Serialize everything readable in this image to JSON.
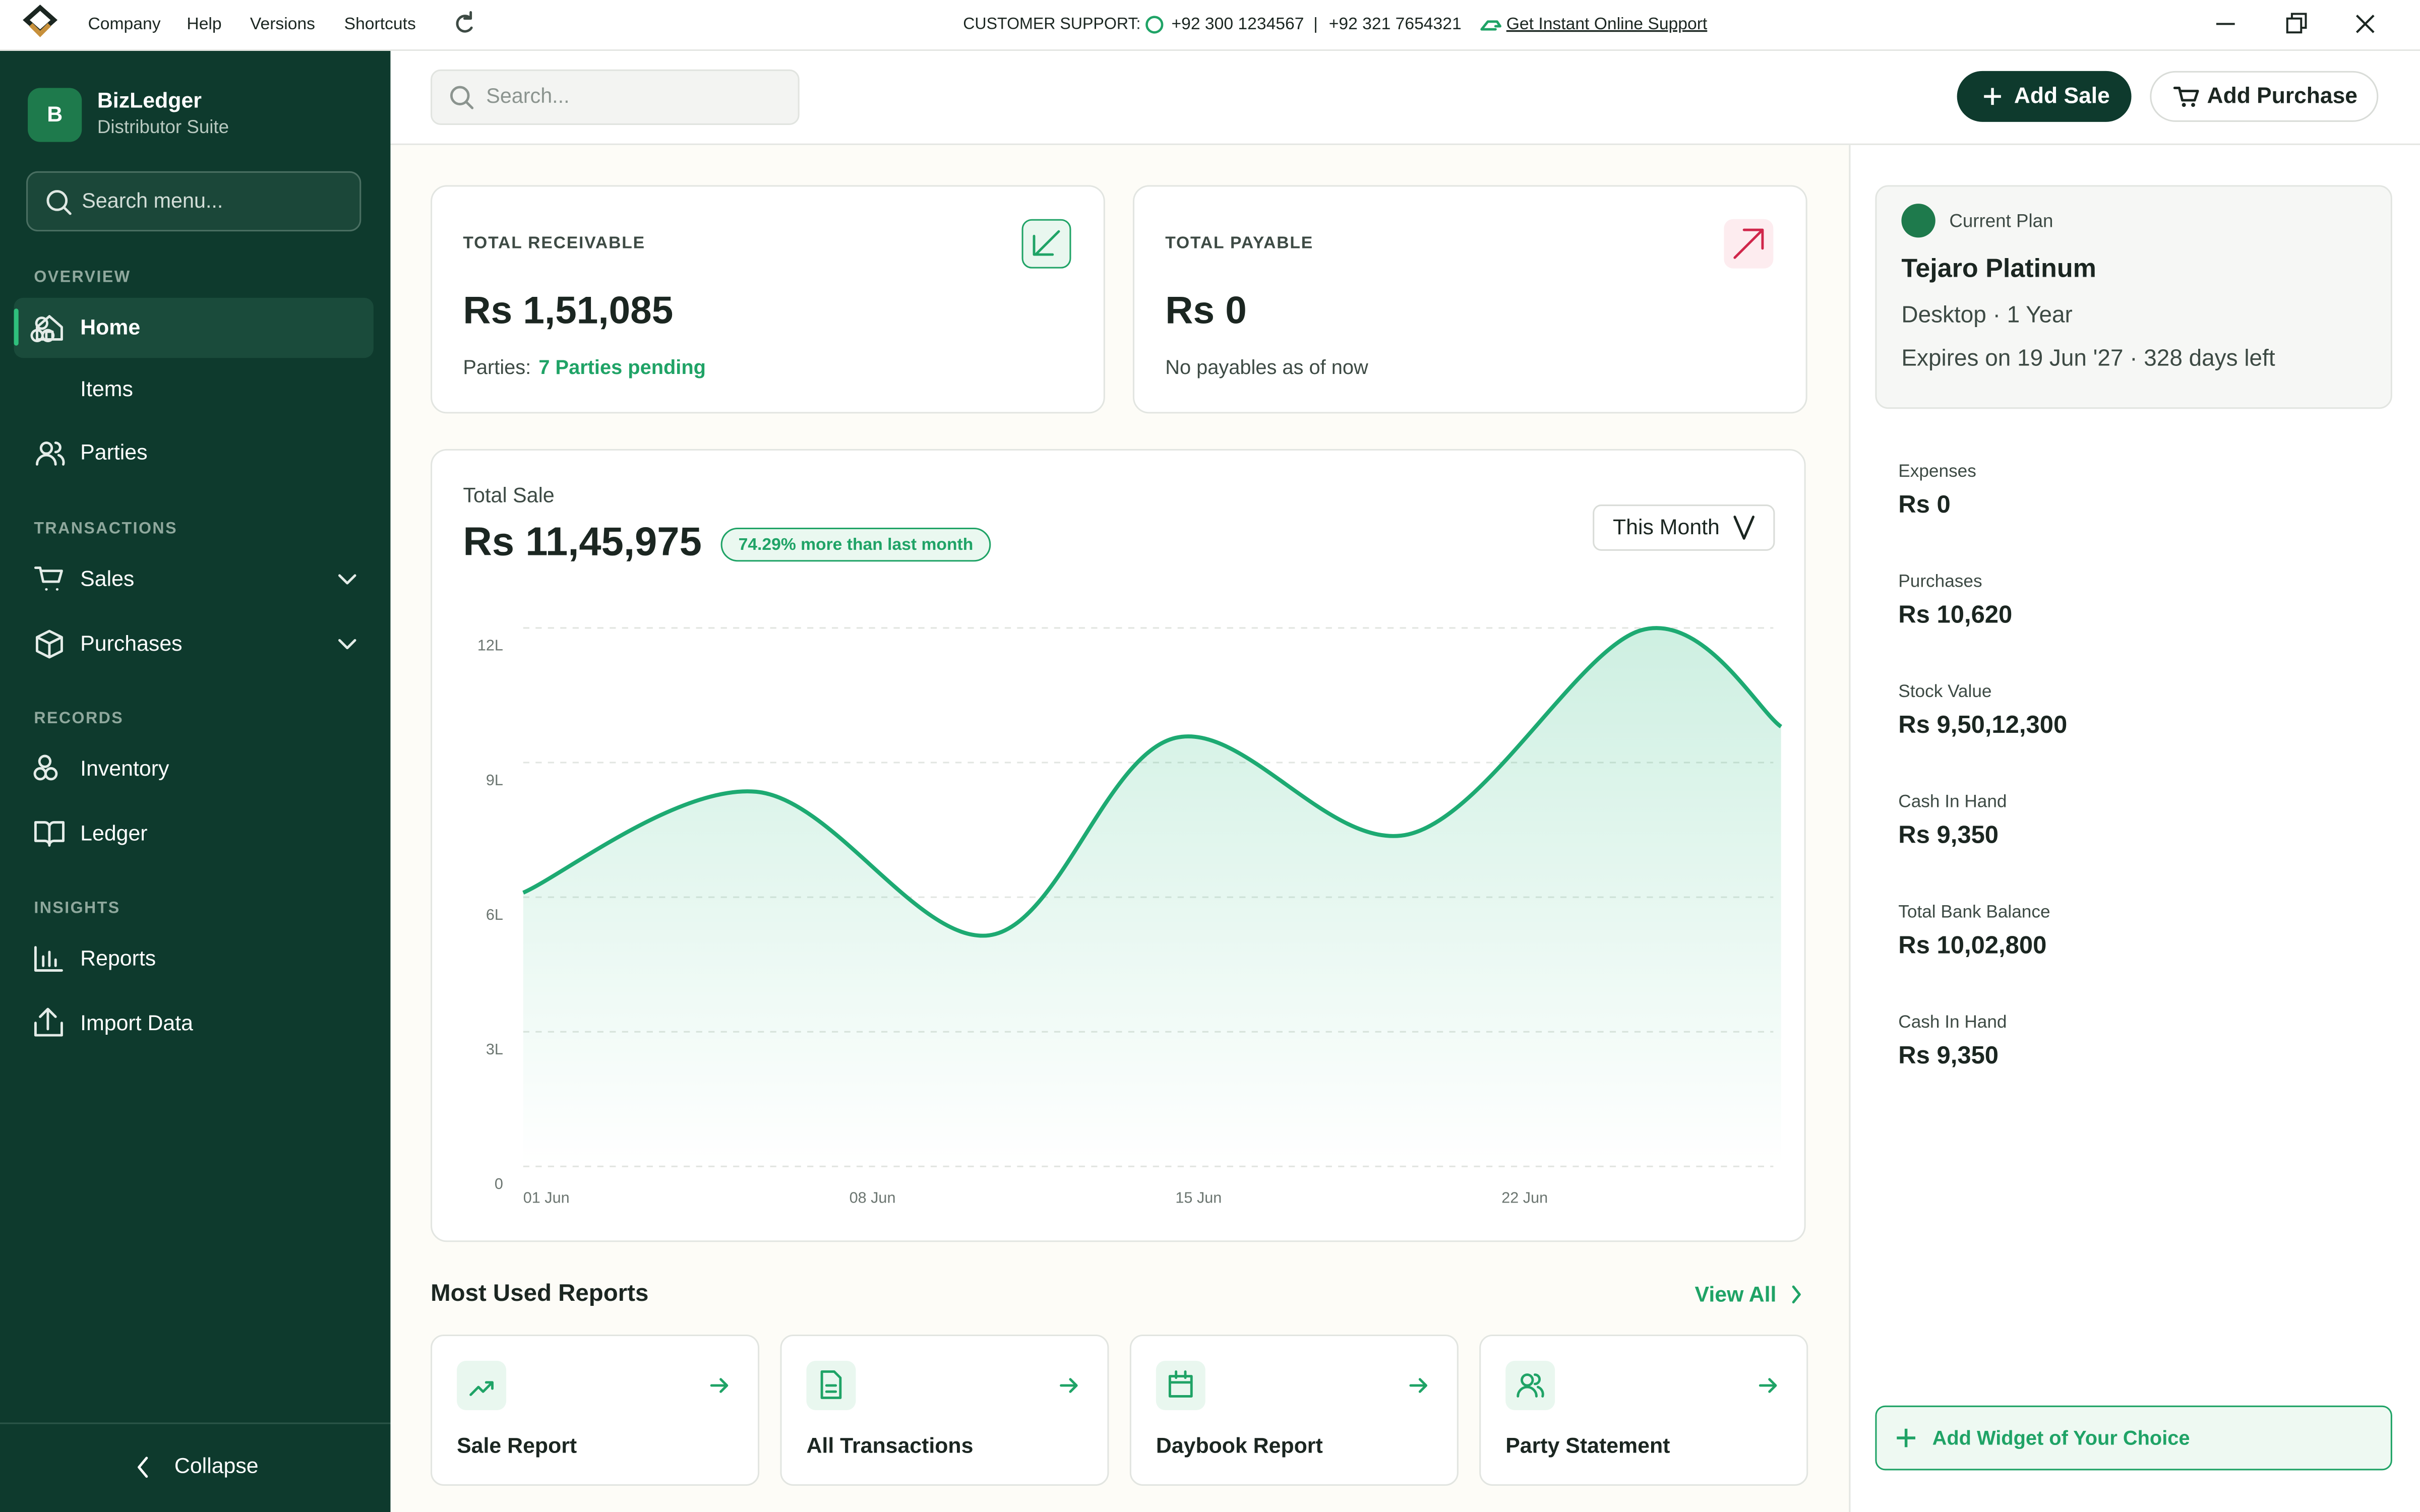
{
  "titlebar": {
    "menu": [
      "Company",
      "Help",
      "Versions",
      "Shortcuts"
    ],
    "support_label": "CUSTOMER SUPPORT:",
    "phones": [
      "+92 300 1234567",
      "+92 321 7654321"
    ],
    "separator": "|",
    "online_support": "Get Instant Online Support"
  },
  "sidebar": {
    "logo_letter": "B",
    "app_name": "BizLedger",
    "app_subtitle": "Distributor Suite",
    "search_placeholder": "Search menu...",
    "sections": [
      {
        "title": "OVERVIEW",
        "items": [
          "Home",
          "Items",
          "Parties"
        ]
      },
      {
        "title": "TRANSACTIONS",
        "items": [
          "Sales",
          "Purchases"
        ]
      },
      {
        "title": "RECORDS",
        "items": [
          "Inventory",
          "Ledger"
        ]
      },
      {
        "title": "INSIGHTS",
        "items": [
          "Reports",
          "Import Data"
        ]
      }
    ],
    "collapse": "Collapse"
  },
  "topbar": {
    "search_placeholder": "Search...",
    "add_sale": "Add Sale",
    "add_purchase": "Add Purchase"
  },
  "cards": [
    {
      "title": "TOTAL RECEIVABLE",
      "amount": "Rs 1,51,085",
      "note_label": "Parties:",
      "note_value": "7 Parties pending"
    },
    {
      "title": "TOTAL PAYABLE",
      "amount": "Rs 0",
      "note_label": "No payables as of now"
    }
  ],
  "chart_data": {
    "type": "area",
    "title": "Total Sale",
    "total": "Rs 11,45,975",
    "badge": "74.29% more than last month",
    "period": "This Month",
    "x": [
      1,
      6,
      11,
      15,
      20,
      25,
      28
    ],
    "values": [
      610000,
      835000,
      515000,
      955000,
      740000,
      1195000,
      980000
    ],
    "color": "#1daa72",
    "xlim": [
      1,
      28
    ],
    "xticks": [
      {
        "value": 1,
        "label": "01 Jun"
      },
      {
        "value": 8,
        "label": "08 Jun"
      },
      {
        "value": 15,
        "label": "15 Jun"
      },
      {
        "value": 22,
        "label": "22 Jun"
      }
    ],
    "ylim": [
      0,
      1200000
    ],
    "yticks": [
      0,
      {
        "value": 300000,
        "label": "3L"
      },
      {
        "value": 600000,
        "label": "6L"
      },
      {
        "value": 900000,
        "label": "9L"
      },
      {
        "value": 1200000,
        "label": "12L"
      }
    ],
    "grid": true
  },
  "reports": {
    "title": "Most Used Reports",
    "view_all": "View All",
    "items": [
      "Sale Report",
      "All Transactions",
      "Daybook Report",
      "Party Statement"
    ]
  },
  "plan": {
    "label": "Current Plan",
    "name": "Tejaro Platinum",
    "details": "Desktop · 1 Year",
    "expiry": "Expires on 19 Jun '27 · 328 days left"
  },
  "stats": [
    {
      "label": "Expenses",
      "value": "Rs 0"
    },
    {
      "label": "Purchases",
      "value": "Rs 10,620"
    },
    {
      "label": "Stock Value",
      "value": "Rs 9,50,12,300"
    },
    {
      "label": "Cash In Hand",
      "value": "Rs 9,350"
    },
    {
      "label": "Total Bank Balance",
      "value": "Rs 10,02,800"
    },
    {
      "label": "Cash In Hand",
      "value": "Rs 9,350"
    }
  ],
  "add_widget": "Add Widget of Your Choice"
}
